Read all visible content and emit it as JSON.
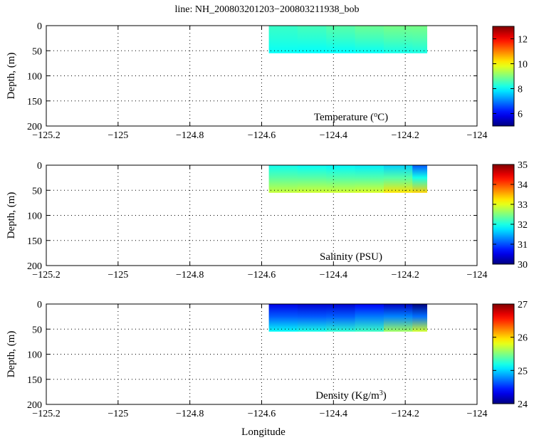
{
  "chart_data": {
    "type": "heatmap",
    "title": "line: NH_200803201203−200803211938_bob",
    "xlabel": "Longitude",
    "x_range": [
      -125.2,
      -124.0
    ],
    "x_ticks": [
      -125.2,
      -125.0,
      -124.8,
      -124.6,
      -124.4,
      -124.2,
      -124.0
    ],
    "x_tick_labels": [
      "−125.2",
      "−125",
      "−124.8",
      "−124.6",
      "−124.4",
      "−124.2",
      "−124"
    ],
    "grid": true,
    "data_extent": {
      "lon": [
        -124.58,
        -124.14
      ],
      "depth": [
        0,
        55
      ]
    },
    "panels": [
      {
        "id": "temperature",
        "label_text": "Temperature (",
        "label_sup": "o",
        "label_tail": "C)",
        "ylabel": "Depth, (m)",
        "y_range": [
          0,
          200
        ],
        "y_ticks": [
          0,
          50,
          100,
          150,
          200
        ],
        "colorbar_range": [
          5,
          13
        ],
        "colorbar_ticks": [
          6,
          8,
          10,
          12
        ],
        "columns": [
          {
            "lon": -124.58,
            "top": 8.4,
            "bottom": 8.1
          },
          {
            "lon": -124.5,
            "top": 8.5,
            "bottom": 8.0
          },
          {
            "lon": -124.42,
            "top": 8.6,
            "bottom": 8.0
          },
          {
            "lon": -124.34,
            "top": 8.8,
            "bottom": 8.0
          },
          {
            "lon": -124.26,
            "top": 8.9,
            "bottom": 8.1
          },
          {
            "lon": -124.18,
            "top": 9.0,
            "bottom": 8.2
          },
          {
            "lon": -124.14,
            "top": 8.9,
            "bottom": 8.2
          }
        ]
      },
      {
        "id": "salinity",
        "label_text": "Salinity (PSU)",
        "label_sup": "",
        "label_tail": "",
        "ylabel": "Depth, (m)",
        "y_range": [
          0,
          200
        ],
        "y_ticks": [
          0,
          50,
          100,
          150,
          200
        ],
        "colorbar_range": [
          30,
          35
        ],
        "colorbar_ticks": [
          30,
          31,
          32,
          33,
          34,
          35
        ],
        "columns": [
          {
            "lon": -124.58,
            "top": 32.0,
            "bottom": 32.8
          },
          {
            "lon": -124.5,
            "top": 31.9,
            "bottom": 32.9
          },
          {
            "lon": -124.42,
            "top": 31.9,
            "bottom": 32.9
          },
          {
            "lon": -124.34,
            "top": 31.8,
            "bottom": 32.9
          },
          {
            "lon": -124.26,
            "top": 31.8,
            "bottom": 33.0
          },
          {
            "lon": -124.18,
            "top": 31.5,
            "bottom": 33.5
          },
          {
            "lon": -124.14,
            "top": 30.6,
            "bottom": 33.2
          }
        ]
      },
      {
        "id": "density",
        "label_text": "Density (Kg/m",
        "label_sup": "3",
        "label_tail": ")",
        "ylabel": "Depth, (m)",
        "y_range": [
          0,
          200
        ],
        "y_ticks": [
          0,
          50,
          100,
          150,
          200
        ],
        "colorbar_range": [
          24,
          27
        ],
        "colorbar_ticks": [
          24,
          25,
          26,
          27
        ],
        "columns": [
          {
            "lon": -124.58,
            "top": 24.3,
            "bottom": 25.1
          },
          {
            "lon": -124.5,
            "top": 24.3,
            "bottom": 25.2
          },
          {
            "lon": -124.42,
            "top": 24.2,
            "bottom": 25.2
          },
          {
            "lon": -124.34,
            "top": 24.3,
            "bottom": 25.3
          },
          {
            "lon": -124.26,
            "top": 24.4,
            "bottom": 25.3
          },
          {
            "lon": -124.18,
            "top": 24.0,
            "bottom": 25.9
          },
          {
            "lon": -124.14,
            "top": 24.0,
            "bottom": 25.6
          }
        ]
      }
    ]
  }
}
